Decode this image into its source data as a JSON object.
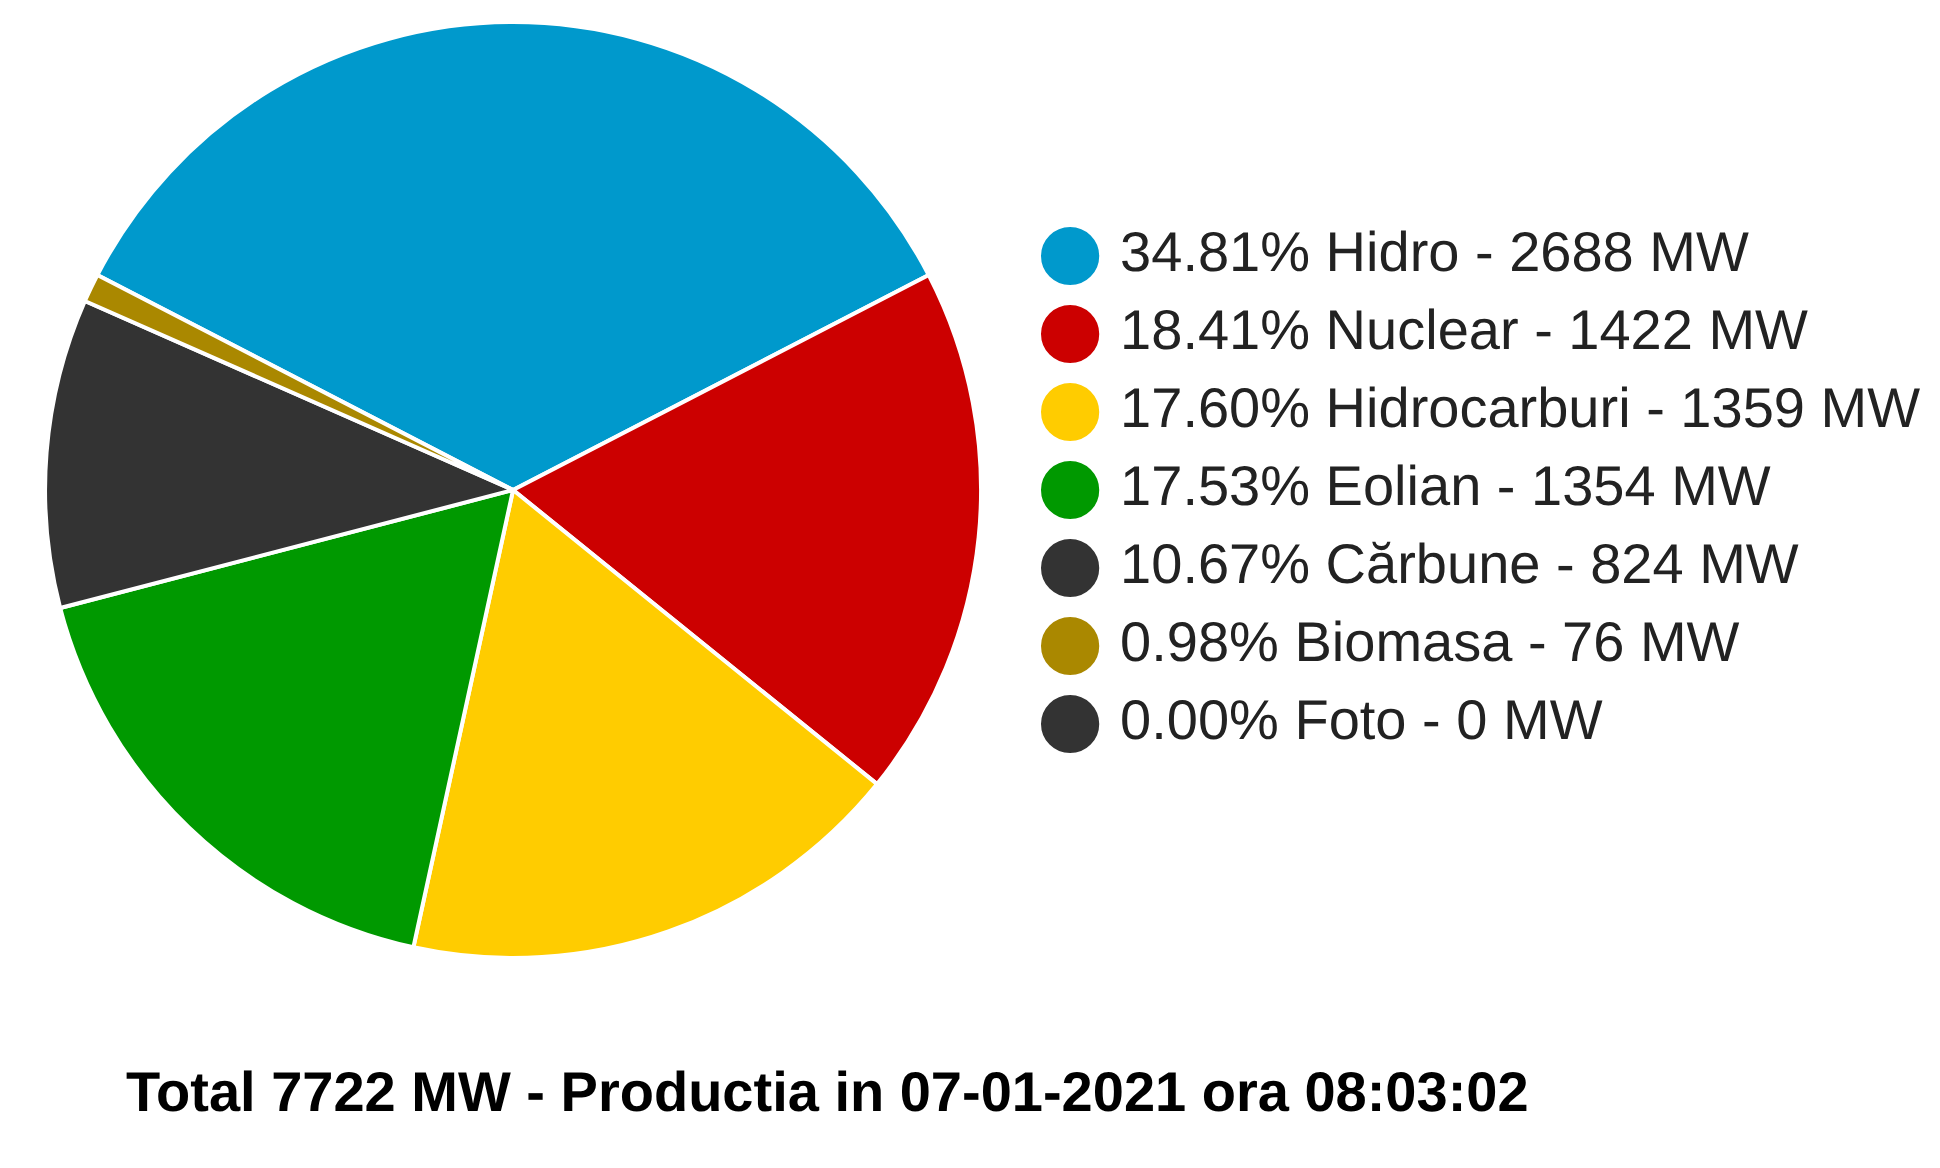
{
  "chart_data": {
    "type": "pie",
    "title": "Total 7722 MW - Productia in 07-01-2021 ora 08:03:02",
    "categories": [
      "34.81% Hidro - 2688 MW",
      "18.41% Nuclear - 1422 MW",
      "17.60% Hidrocarburi - 1359 MW",
      "17.53% Eolian - 1354 MW",
      "10.67% Cărbune - 824 MW",
      "0.98% Biomasa - 76 MW",
      "0.00% Foto - 0 MW"
    ],
    "values": [
      34.81,
      18.41,
      17.6,
      17.53,
      10.67,
      0.98,
      0.0
    ],
    "colors": [
      "#0099cc",
      "#cc0000",
      "#ffcc00",
      "#009900",
      "#333333",
      "#aa8800",
      "#333333"
    ],
    "legend": "right"
  }
}
